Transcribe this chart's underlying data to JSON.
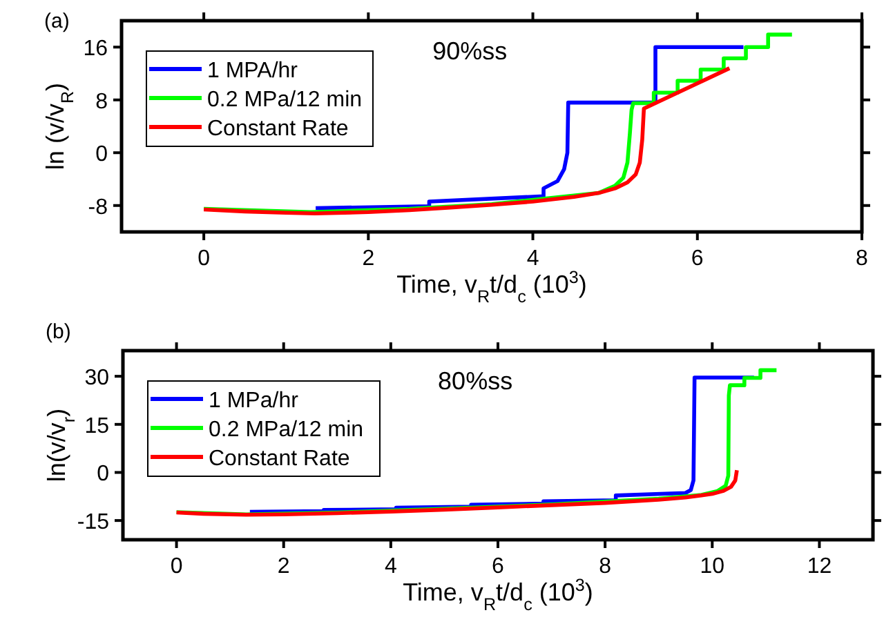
{
  "chart_data": [
    {
      "type": "line",
      "xlabel": "Time, v$_{R}$t/d$_{c}$ (10$^{3}$)",
      "ylabel": "ln (v/v$_{R}$)",
      "annotations": [
        "(a)",
        "90%ss"
      ],
      "xlim": [
        -1,
        8
      ],
      "xticks": [
        0,
        2,
        4,
        6,
        8
      ],
      "ylim": [
        -12,
        20
      ],
      "yticks": [
        -8,
        0,
        8,
        16
      ],
      "grid": false,
      "legend": "top left",
      "marker": "none",
      "line_style": "solid",
      "series": [
        {
          "name": "1 MPA/hr",
          "color": "#0000ff",
          "x": [
            1.36,
            2.74,
            2.74,
            4.13,
            4.13,
            4.3,
            4.38,
            4.42,
            4.43,
            5.49,
            5.49,
            6.56
          ],
          "values": [
            -8.4,
            -8.1,
            -7.4,
            -6.6,
            -5.4,
            -4.3,
            -2.5,
            0,
            7.6,
            7.6,
            16,
            16
          ]
        },
        {
          "name": "0.2 MPa/12 min",
          "color": "#00ff00",
          "x": [
            0,
            1.3,
            2.5,
            3.5,
            4.8,
            5.0,
            5.1,
            5.15,
            5.18,
            5.2,
            5.22,
            5.47,
            5.47,
            5.76,
            5.76,
            6.04,
            6.04,
            6.32,
            6.32,
            6.59,
            6.59,
            6.86,
            6.86,
            7.15
          ],
          "values": [
            -8.5,
            -9.0,
            -8.5,
            -7.8,
            -6.1,
            -5.0,
            -3.8,
            -1.5,
            3,
            6.5,
            7.5,
            7.5,
            9.1,
            9.1,
            10.9,
            10.9,
            12.6,
            12.6,
            14.3,
            14.3,
            16,
            16,
            17.9,
            17.9
          ]
        },
        {
          "name": "Constant Rate",
          "color": "#ff0000",
          "x": [
            0,
            0.5,
            1.0,
            1.35,
            2,
            2.5,
            3,
            3.5,
            4,
            4.5,
            4.8,
            5.0,
            5.15,
            5.25,
            5.3,
            5.33,
            5.35,
            6.39
          ],
          "values": [
            -8.6,
            -8.9,
            -9.1,
            -9.2,
            -9.0,
            -8.7,
            -8.3,
            -7.9,
            -7.4,
            -6.7,
            -6.1,
            -5.4,
            -4.5,
            -3.3,
            -1.5,
            2,
            6.7,
            12.8
          ]
        }
      ]
    },
    {
      "type": "line",
      "xlabel": "Time, v$_{R}$t/d$_{c}$ (10$^{3}$)",
      "ylabel": "ln(v/v$_{r}$)",
      "annotations": [
        "(b)",
        "80%ss"
      ],
      "xlim": [
        -1,
        13
      ],
      "xticks": [
        0,
        2,
        4,
        6,
        8,
        10,
        12
      ],
      "ylim": [
        -21,
        38
      ],
      "yticks": [
        -15,
        0,
        15,
        30
      ],
      "grid": false,
      "legend": "top left",
      "marker": "none",
      "line_style": "solid",
      "series": [
        {
          "name": "1 MPa/hr",
          "color": "#0000ff",
          "x": [
            1.37,
            2.75,
            2.75,
            4.1,
            4.1,
            5.5,
            5.5,
            6.85,
            6.85,
            8.2,
            8.2,
            9.5,
            9.6,
            9.65,
            9.67,
            10.78
          ],
          "values": [
            -12.3,
            -12.1,
            -11.7,
            -11.5,
            -11.0,
            -10.7,
            -10.1,
            -9.7,
            -9.0,
            -8.7,
            -7.2,
            -6.4,
            -5.5,
            -2.5,
            29.6,
            29.6
          ]
        },
        {
          "name": "0.2 MPa/12 min",
          "color": "#00ff00",
          "x": [
            0,
            1.3,
            3,
            5,
            7,
            9,
            9.8,
            10.1,
            10.25,
            10.3,
            10.31,
            10.33,
            10.6,
            10.6,
            10.9,
            10.9,
            11.2
          ],
          "values": [
            -12.4,
            -13.1,
            -12.5,
            -11.3,
            -10,
            -8.2,
            -7,
            -5.8,
            -4.2,
            -1,
            24,
            27.2,
            27.2,
            29.5,
            29.5,
            31.9,
            31.9
          ]
        },
        {
          "name": "Constant Rate",
          "color": "#ff0000",
          "x": [
            0,
            0.5,
            1.3,
            2,
            3,
            4,
            5,
            6,
            7,
            8,
            9,
            9.5,
            10,
            10.2,
            10.35,
            10.43,
            10.46
          ],
          "values": [
            -12.5,
            -12.9,
            -13.2,
            -13.1,
            -12.7,
            -12.2,
            -11.6,
            -10.9,
            -10.2,
            -9.5,
            -8.5,
            -7.8,
            -6.7,
            -5.8,
            -4.5,
            -2.5,
            0.7
          ]
        }
      ]
    }
  ]
}
